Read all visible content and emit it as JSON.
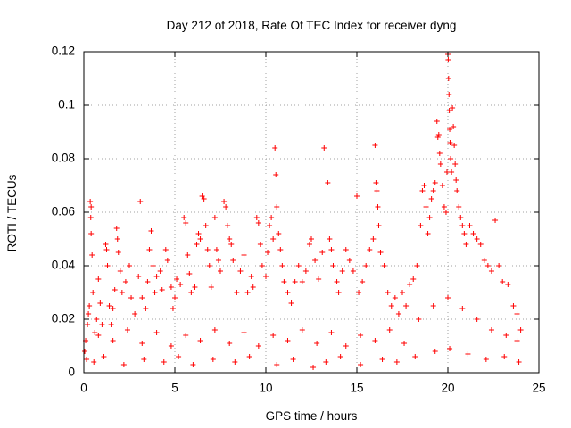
{
  "chart_data": {
    "type": "scatter",
    "title": "Day 212 of 2018, Rate Of TEC Index for receiver dyng",
    "xlabel": "GPS time / hours",
    "ylabel": "ROTI / TECUs",
    "xlim": [
      0,
      25
    ],
    "ylim": [
      0,
      0.12
    ],
    "x_ticks": [
      0,
      5,
      10,
      15,
      20,
      25
    ],
    "x_tick_labels": [
      "0",
      "5",
      "10",
      "15",
      "20",
      "25"
    ],
    "y_ticks": [
      0,
      0.02,
      0.04,
      0.06,
      0.08,
      0.1,
      0.12
    ],
    "y_tick_labels": [
      "0",
      "0.02",
      "0.04",
      "0.06",
      "0.08",
      "0.1",
      "0.12"
    ],
    "grid": true,
    "marker": "plus",
    "color": "#ff0000",
    "series": [
      {
        "name": "ROTI",
        "points": [
          [
            0.05,
            0.008
          ],
          [
            0.1,
            0.012
          ],
          [
            0.2,
            0.018
          ],
          [
            0.25,
            0.022
          ],
          [
            0.3,
            0.025
          ],
          [
            0.35,
            0.064
          ],
          [
            0.38,
            0.058
          ],
          [
            0.4,
            0.052
          ],
          [
            0.4,
            0.062
          ],
          [
            0.45,
            0.044
          ],
          [
            0.5,
            0.03
          ],
          [
            0.6,
            0.015
          ],
          [
            0.7,
            0.02
          ],
          [
            0.8,
            0.035
          ],
          [
            0.9,
            0.026
          ],
          [
            1.0,
            0.018
          ],
          [
            1.2,
            0.048
          ],
          [
            1.25,
            0.046
          ],
          [
            1.3,
            0.04
          ],
          [
            1.4,
            0.025
          ],
          [
            1.5,
            0.018
          ],
          [
            1.6,
            0.024
          ],
          [
            1.7,
            0.031
          ],
          [
            1.8,
            0.054
          ],
          [
            1.85,
            0.05
          ],
          [
            1.9,
            0.045
          ],
          [
            2.0,
            0.038
          ],
          [
            2.1,
            0.03
          ],
          [
            2.3,
            0.034
          ],
          [
            2.5,
            0.04
          ],
          [
            2.6,
            0.028
          ],
          [
            2.8,
            0.022
          ],
          [
            3.1,
            0.064
          ],
          [
            3.0,
            0.036
          ],
          [
            3.2,
            0.028
          ],
          [
            3.4,
            0.024
          ],
          [
            3.5,
            0.034
          ],
          [
            3.6,
            0.046
          ],
          [
            3.7,
            0.053
          ],
          [
            3.8,
            0.04
          ],
          [
            3.9,
            0.03
          ],
          [
            4.0,
            0.036
          ],
          [
            4.2,
            0.038
          ],
          [
            4.3,
            0.031
          ],
          [
            4.5,
            0.046
          ],
          [
            4.6,
            0.042
          ],
          [
            4.8,
            0.032
          ],
          [
            4.9,
            0.024
          ],
          [
            5.0,
            0.028
          ],
          [
            5.1,
            0.035
          ],
          [
            5.3,
            0.033
          ],
          [
            5.5,
            0.058
          ],
          [
            5.6,
            0.056
          ],
          [
            5.7,
            0.044
          ],
          [
            5.8,
            0.037
          ],
          [
            5.9,
            0.03
          ],
          [
            6.1,
            0.032
          ],
          [
            6.2,
            0.048
          ],
          [
            6.3,
            0.052
          ],
          [
            6.4,
            0.05
          ],
          [
            6.5,
            0.066
          ],
          [
            6.6,
            0.065
          ],
          [
            6.7,
            0.055
          ],
          [
            6.8,
            0.046
          ],
          [
            6.9,
            0.04
          ],
          [
            7.0,
            0.032
          ],
          [
            7.2,
            0.058
          ],
          [
            7.3,
            0.046
          ],
          [
            7.4,
            0.042
          ],
          [
            7.5,
            0.038
          ],
          [
            7.7,
            0.064
          ],
          [
            7.8,
            0.062
          ],
          [
            7.9,
            0.055
          ],
          [
            8.0,
            0.05
          ],
          [
            8.1,
            0.048
          ],
          [
            8.2,
            0.042
          ],
          [
            8.4,
            0.03
          ],
          [
            8.6,
            0.038
          ],
          [
            8.8,
            0.044
          ],
          [
            9.0,
            0.03
          ],
          [
            9.2,
            0.036
          ],
          [
            9.3,
            0.032
          ],
          [
            9.5,
            0.058
          ],
          [
            9.6,
            0.056
          ],
          [
            9.7,
            0.048
          ],
          [
            9.8,
            0.04
          ],
          [
            10.0,
            0.036
          ],
          [
            10.1,
            0.045
          ],
          [
            10.2,
            0.055
          ],
          [
            10.3,
            0.058
          ],
          [
            10.4,
            0.05
          ],
          [
            10.5,
            0.084
          ],
          [
            10.55,
            0.074
          ],
          [
            10.6,
            0.062
          ],
          [
            10.7,
            0.052
          ],
          [
            10.8,
            0.046
          ],
          [
            10.9,
            0.04
          ],
          [
            11.0,
            0.034
          ],
          [
            11.2,
            0.03
          ],
          [
            11.4,
            0.026
          ],
          [
            11.6,
            0.034
          ],
          [
            11.8,
            0.04
          ],
          [
            12.0,
            0.034
          ],
          [
            12.2,
            0.038
          ],
          [
            12.4,
            0.048
          ],
          [
            12.5,
            0.05
          ],
          [
            12.7,
            0.042
          ],
          [
            12.9,
            0.035
          ],
          [
            13.1,
            0.045
          ],
          [
            13.2,
            0.084
          ],
          [
            13.4,
            0.071
          ],
          [
            13.5,
            0.05
          ],
          [
            13.6,
            0.046
          ],
          [
            13.7,
            0.04
          ],
          [
            13.9,
            0.034
          ],
          [
            14.0,
            0.03
          ],
          [
            14.2,
            0.038
          ],
          [
            14.4,
            0.046
          ],
          [
            14.6,
            0.042
          ],
          [
            14.8,
            0.038
          ],
          [
            15.0,
            0.066
          ],
          [
            15.1,
            0.03
          ],
          [
            15.3,
            0.034
          ],
          [
            15.5,
            0.04
          ],
          [
            15.7,
            0.046
          ],
          [
            15.9,
            0.05
          ],
          [
            16.0,
            0.085
          ],
          [
            16.05,
            0.071
          ],
          [
            16.1,
            0.068
          ],
          [
            16.15,
            0.062
          ],
          [
            16.2,
            0.055
          ],
          [
            16.3,
            0.045
          ],
          [
            16.5,
            0.04
          ],
          [
            16.7,
            0.03
          ],
          [
            16.9,
            0.025
          ],
          [
            17.1,
            0.028
          ],
          [
            17.3,
            0.022
          ],
          [
            17.5,
            0.03
          ],
          [
            17.7,
            0.025
          ],
          [
            17.9,
            0.033
          ],
          [
            18.1,
            0.035
          ],
          [
            18.3,
            0.04
          ],
          [
            18.5,
            0.055
          ],
          [
            18.6,
            0.068
          ],
          [
            18.7,
            0.07
          ],
          [
            18.8,
            0.062
          ],
          [
            18.9,
            0.052
          ],
          [
            19.0,
            0.058
          ],
          [
            19.1,
            0.065
          ],
          [
            19.2,
            0.068
          ],
          [
            19.3,
            0.071
          ],
          [
            19.4,
            0.094
          ],
          [
            19.45,
            0.088
          ],
          [
            19.5,
            0.089
          ],
          [
            19.55,
            0.082
          ],
          [
            19.6,
            0.078
          ],
          [
            19.7,
            0.07
          ],
          [
            19.8,
            0.062
          ],
          [
            19.9,
            0.06
          ],
          [
            19.95,
            0.075
          ],
          [
            20.0,
            0.119
          ],
          [
            20.02,
            0.117
          ],
          [
            20.04,
            0.11
          ],
          [
            20.06,
            0.104
          ],
          [
            20.08,
            0.098
          ],
          [
            20.1,
            0.091
          ],
          [
            20.12,
            0.086
          ],
          [
            20.15,
            0.08
          ],
          [
            20.2,
            0.075
          ],
          [
            20.25,
            0.099
          ],
          [
            20.3,
            0.092
          ],
          [
            20.35,
            0.085
          ],
          [
            20.4,
            0.078
          ],
          [
            20.45,
            0.072
          ],
          [
            20.5,
            0.068
          ],
          [
            20.6,
            0.062
          ],
          [
            20.7,
            0.058
          ],
          [
            20.8,
            0.055
          ],
          [
            20.9,
            0.052
          ],
          [
            21.0,
            0.048
          ],
          [
            21.2,
            0.055
          ],
          [
            21.4,
            0.052
          ],
          [
            21.6,
            0.05
          ],
          [
            21.8,
            0.048
          ],
          [
            22.0,
            0.042
          ],
          [
            22.2,
            0.04
          ],
          [
            22.4,
            0.038
          ],
          [
            22.6,
            0.057
          ],
          [
            22.8,
            0.04
          ],
          [
            23.0,
            0.034
          ],
          [
            23.3,
            0.033
          ],
          [
            23.6,
            0.025
          ],
          [
            23.8,
            0.022
          ],
          [
            24.0,
            0.016
          ],
          [
            0.15,
            0.005
          ],
          [
            0.55,
            0.004
          ],
          [
            1.1,
            0.006
          ],
          [
            2.2,
            0.003
          ],
          [
            3.3,
            0.005
          ],
          [
            4.4,
            0.004
          ],
          [
            5.2,
            0.006
          ],
          [
            6.0,
            0.003
          ],
          [
            7.1,
            0.005
          ],
          [
            8.3,
            0.004
          ],
          [
            9.1,
            0.006
          ],
          [
            10.6,
            0.003
          ],
          [
            11.5,
            0.005
          ],
          [
            12.6,
            0.002
          ],
          [
            13.3,
            0.004
          ],
          [
            14.1,
            0.006
          ],
          [
            15.2,
            0.003
          ],
          [
            16.4,
            0.005
          ],
          [
            17.2,
            0.004
          ],
          [
            18.2,
            0.006
          ],
          [
            19.3,
            0.008
          ],
          [
            20.1,
            0.009
          ],
          [
            21.1,
            0.007
          ],
          [
            22.1,
            0.005
          ],
          [
            23.1,
            0.006
          ],
          [
            23.9,
            0.004
          ],
          [
            0.8,
            0.014
          ],
          [
            1.6,
            0.012
          ],
          [
            2.4,
            0.016
          ],
          [
            3.2,
            0.011
          ],
          [
            4.0,
            0.015
          ],
          [
            4.8,
            0.01
          ],
          [
            5.6,
            0.014
          ],
          [
            6.4,
            0.012
          ],
          [
            7.2,
            0.016
          ],
          [
            8.0,
            0.011
          ],
          [
            8.8,
            0.015
          ],
          [
            9.6,
            0.01
          ],
          [
            10.4,
            0.014
          ],
          [
            11.2,
            0.012
          ],
          [
            12.0,
            0.016
          ],
          [
            12.8,
            0.011
          ],
          [
            13.6,
            0.015
          ],
          [
            14.4,
            0.01
          ],
          [
            15.2,
            0.014
          ],
          [
            16.0,
            0.012
          ],
          [
            16.8,
            0.016
          ],
          [
            17.6,
            0.011
          ],
          [
            18.4,
            0.02
          ],
          [
            19.2,
            0.025
          ],
          [
            20.0,
            0.028
          ],
          [
            20.8,
            0.024
          ],
          [
            21.6,
            0.02
          ],
          [
            22.4,
            0.016
          ],
          [
            23.2,
            0.014
          ],
          [
            23.8,
            0.012
          ]
        ]
      }
    ]
  }
}
